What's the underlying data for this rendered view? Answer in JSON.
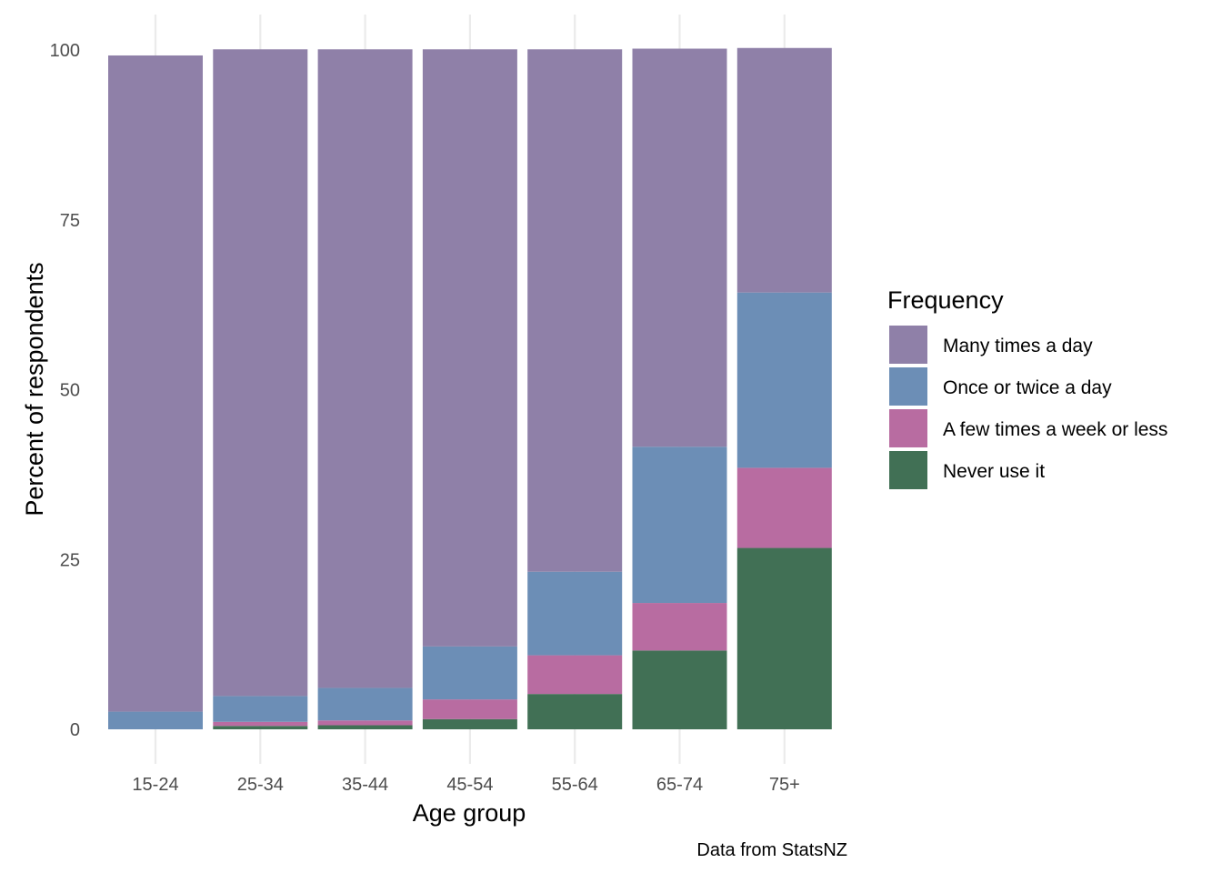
{
  "chart_data": {
    "type": "bar",
    "stacked": true,
    "xlabel": "Age group",
    "ylabel": "Percent of respondents",
    "caption": "Data from StatsNZ",
    "ylim": [
      0,
      100
    ],
    "yticks": [
      0,
      25,
      50,
      75,
      100
    ],
    "grid": "vertical major lines at categories",
    "legend_title": "Frequency",
    "legend_position": "right",
    "categories": [
      "15-24",
      "25-34",
      "35-44",
      "45-54",
      "55-64",
      "65-74",
      "75+"
    ],
    "series": [
      {
        "name": "Never use it",
        "color": "#417055",
        "values": [
          0.0,
          0.5,
          0.6,
          1.5,
          5.2,
          11.6,
          26.7
        ]
      },
      {
        "name": "A few times a week or less",
        "color": "#b86ca1",
        "values": [
          0.0,
          0.6,
          0.7,
          2.9,
          5.7,
          7.0,
          11.8
        ]
      },
      {
        "name": "Once or twice a day",
        "color": "#6c8eb6",
        "values": [
          2.6,
          3.8,
          4.8,
          7.8,
          12.3,
          23.0,
          25.8
        ]
      },
      {
        "name": "Many times a day",
        "color": "#8f80a8",
        "values": [
          96.6,
          95.2,
          94.0,
          87.9,
          76.9,
          58.6,
          36.0
        ]
      }
    ],
    "legend_order": [
      "Many times a day",
      "Once or twice a day",
      "A few times a week or less",
      "Never use it"
    ]
  }
}
